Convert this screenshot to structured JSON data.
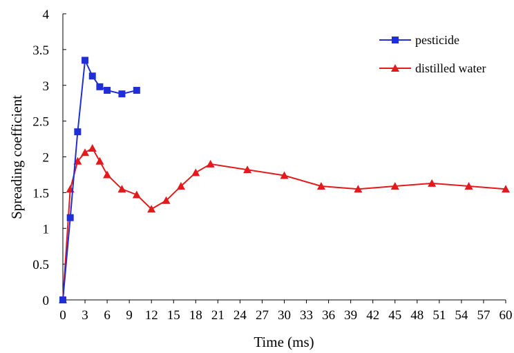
{
  "chart_data": {
    "type": "line",
    "xlabel": "Time (ms)",
    "ylabel": "Spreading coefficient",
    "ylim": [
      0,
      4
    ],
    "yticks": [
      "0",
      "0.5",
      "1",
      "1.5",
      "2",
      "2.5",
      "3",
      "3.5",
      "4"
    ],
    "xticks": [
      "0",
      "3",
      "6",
      "9",
      "12",
      "15",
      "18",
      "21",
      "24",
      "27",
      "30",
      "33",
      "36",
      "39",
      "42",
      "45",
      "48",
      "51",
      "54",
      "57",
      "60"
    ],
    "grid": false,
    "legend_position": "top-right",
    "series": [
      {
        "name": "pesticide",
        "color": "#1f2ed6",
        "marker": "square",
        "points": [
          [
            0,
            0
          ],
          [
            1,
            1.15
          ],
          [
            2,
            2.35
          ],
          [
            3,
            3.35
          ],
          [
            4,
            3.13
          ],
          [
            5,
            2.98
          ],
          [
            6,
            2.93
          ],
          [
            8,
            2.88
          ],
          [
            10,
            2.93
          ]
        ]
      },
      {
        "name": "distilled water",
        "color": "#e31a1c",
        "marker": "triangle",
        "points": [
          [
            0,
            0
          ],
          [
            1,
            1.55
          ],
          [
            2,
            1.94
          ],
          [
            3,
            2.06
          ],
          [
            4,
            2.12
          ],
          [
            5,
            1.94
          ],
          [
            6,
            1.75
          ],
          [
            8,
            1.55
          ],
          [
            10,
            1.47
          ],
          [
            12,
            1.27
          ],
          [
            14,
            1.39
          ],
          [
            16,
            1.59
          ],
          [
            18,
            1.78
          ],
          [
            20,
            1.9
          ],
          [
            25,
            1.82
          ],
          [
            30,
            1.74
          ],
          [
            35,
            1.59
          ],
          [
            40,
            1.55
          ],
          [
            45,
            1.59
          ],
          [
            50,
            1.63
          ],
          [
            55,
            1.59
          ],
          [
            60,
            1.55
          ]
        ]
      }
    ]
  }
}
